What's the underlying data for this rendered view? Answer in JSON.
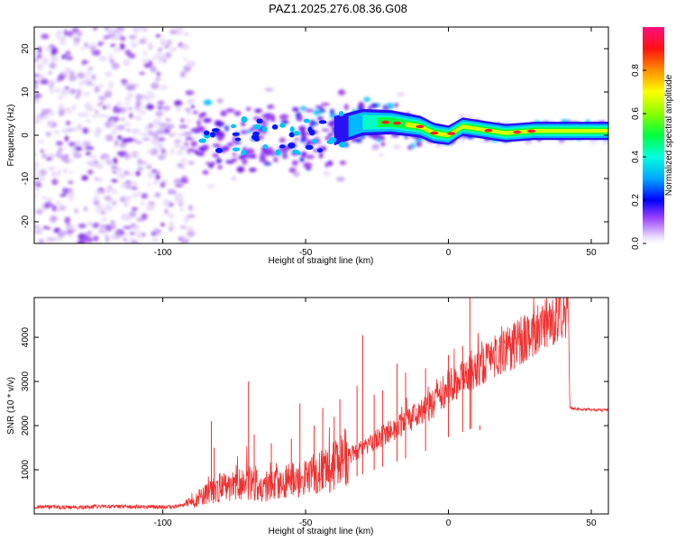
{
  "title": "PAZ1.2025.276.08.36.G08",
  "chart_data": [
    {
      "type": "heatmap",
      "name": "spectrogram",
      "xlabel": "Height of straight line (km)",
      "ylabel": "Frequency (Hz)",
      "xlim": [
        -145,
        56
      ],
      "ylim": [
        -25,
        25
      ],
      "xticks": [
        -100,
        -50,
        0,
        50
      ],
      "xtick_labels": [
        "-100",
        "-50",
        "0",
        "50"
      ],
      "yticks": [
        -20,
        -10,
        0,
        10,
        20
      ],
      "ytick_labels": [
        "-20",
        "-10",
        "0",
        "10",
        "20"
      ],
      "ridge": {
        "x": [
          -90,
          -80,
          -70,
          -60,
          -50,
          -40,
          -30,
          -20,
          -10,
          -5,
          0,
          5,
          10,
          20,
          30,
          40,
          50,
          56
        ],
        "y": [
          0,
          -1,
          0,
          -1,
          0,
          1,
          3,
          3,
          2,
          0.5,
          0,
          2,
          1.5,
          0.5,
          1,
          1,
          1,
          1
        ]
      },
      "colorbar": {
        "label": "Normalized spectral amplitude",
        "range": [
          0,
          1
        ],
        "ticks": [
          0,
          0.2,
          0.4,
          0.6,
          0.8
        ],
        "tick_labels": [
          "0.0",
          "0.2",
          "0.4",
          "0.6",
          "0.8"
        ]
      }
    },
    {
      "type": "line",
      "name": "snr",
      "xlabel": "Height of straight line (km)",
      "ylabel": "SNR (10 * v/v)",
      "xlim": [
        -145,
        56
      ],
      "ylim": [
        0,
        4900
      ],
      "xticks": [
        -100,
        -50,
        0,
        50
      ],
      "xtick_labels": [
        "-100",
        "-50",
        "0",
        "50"
      ],
      "yticks": [
        1000,
        2000,
        3000,
        4000
      ],
      "ytick_labels": [
        "1000",
        "2000",
        "3000",
        "4000"
      ],
      "color": "#f03030",
      "series": [
        {
          "name": "SNR",
          "x": [
            -145,
            -130,
            -115,
            -100,
            -95,
            -90,
            -85,
            -80,
            -75,
            -70,
            -65,
            -60,
            -55,
            -50,
            -45,
            -40,
            -35,
            -30,
            -25,
            -20,
            -15,
            -10,
            -5,
            0,
            5,
            10,
            15,
            20,
            25,
            30,
            35,
            40,
            42,
            42.5,
            45,
            50,
            56
          ],
          "y": [
            160,
            150,
            170,
            160,
            160,
            250,
            450,
            600,
            650,
            700,
            600,
            700,
            750,
            800,
            950,
            1100,
            1300,
            1500,
            1700,
            1900,
            2100,
            2300,
            2500,
            2900,
            3100,
            3300,
            3500,
            3700,
            3900,
            4100,
            4350,
            4550,
            4650,
            2400,
            2380,
            2360,
            2350
          ]
        }
      ],
      "spikes": {
        "x": [
          -83,
          -82,
          -70,
          -68,
          -62,
          -55,
          -52,
          -47,
          -44,
          -40,
          -38,
          -32,
          -30,
          -26,
          -23,
          -18,
          -15,
          -8,
          0,
          5,
          7.5,
          8,
          11
        ],
        "y": [
          2100,
          1500,
          3000,
          1800,
          1600,
          1700,
          2500,
          2000,
          2400,
          2200,
          2600,
          2900,
          4050,
          2700,
          2800,
          3400,
          3200,
          3300,
          3600,
          3800,
          4900,
          3700,
          1900
        ]
      }
    }
  ]
}
